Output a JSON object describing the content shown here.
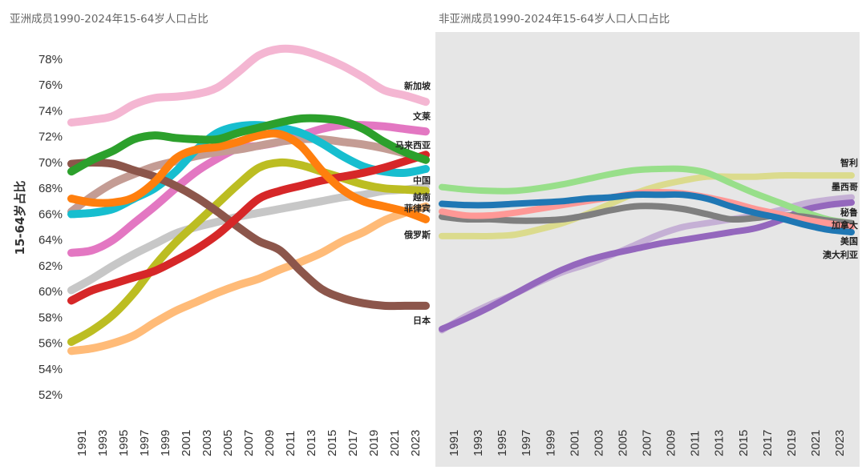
{
  "chart_data": [
    {
      "type": "line",
      "title": "亚洲成员1990-2024年15-64岁人口占比",
      "ylabel": "15-64岁占比",
      "xlabel": "",
      "ylim": [
        52,
        78
      ],
      "yticks": [
        "52%",
        "54%",
        "56%",
        "58%",
        "60%",
        "62%",
        "64%",
        "66%",
        "68%",
        "70%",
        "72%",
        "74%",
        "76%",
        "78%"
      ],
      "xticks": [
        "1991",
        "1993",
        "1995",
        "1997",
        "1999",
        "2001",
        "2003",
        "2005",
        "2007",
        "2009",
        "2011",
        "2013",
        "2015",
        "2017",
        "2019",
        "2021",
        "2023"
      ],
      "grid": false,
      "x": [
        1990,
        1992,
        1994,
        1996,
        1998,
        2000,
        2002,
        2004,
        2006,
        2008,
        2010,
        2012,
        2014,
        2016,
        2018,
        2020,
        2022,
        2024
      ],
      "series": [
        {
          "name": "新加坡",
          "color": "#f4b6d2",
          "values": [
            73.1,
            73.3,
            73.6,
            74.5,
            75.0,
            75.1,
            75.3,
            75.8,
            77.0,
            78.3,
            78.8,
            78.7,
            78.2,
            77.5,
            76.6,
            75.6,
            75.2,
            74.7
          ]
        },
        {
          "name": "文莱",
          "color": "#e377c2",
          "values": [
            63.0,
            63.2,
            64.0,
            65.3,
            66.6,
            68.0,
            69.3,
            70.3,
            71.1,
            71.3,
            71.6,
            72.1,
            72.6,
            72.9,
            72.9,
            72.8,
            72.6,
            72.4
          ]
        },
        {
          "name": "",
          "color": "#c49c94",
          "values": [
            66.2,
            67.4,
            68.4,
            69.1,
            69.7,
            70.1,
            70.5,
            70.8,
            71.0,
            71.3,
            71.6,
            71.8,
            71.8,
            71.6,
            71.4,
            71.1,
            70.7,
            70.2
          ]
        },
        {
          "name": "中国",
          "color": "#17becf",
          "values": [
            66.0,
            66.1,
            66.4,
            67.2,
            68.0,
            69.3,
            71.0,
            72.3,
            72.8,
            72.9,
            72.7,
            72.3,
            71.5,
            70.5,
            69.7,
            69.3,
            69.2,
            69.5
          ]
        },
        {
          "name": "",
          "color": "#c7c7c7",
          "values": [
            60.1,
            61.0,
            62.0,
            62.9,
            63.7,
            64.5,
            65.0,
            65.4,
            65.8,
            66.1,
            66.4,
            66.7,
            67.0,
            67.3,
            67.5,
            67.8,
            67.9,
            68.1
          ]
        },
        {
          "name": "越南",
          "color": "#bcbd22",
          "values": [
            56.1,
            57.0,
            58.2,
            59.9,
            62.0,
            63.8,
            65.3,
            66.8,
            68.3,
            69.6,
            70.0,
            69.8,
            69.3,
            68.8,
            68.3,
            68.0,
            67.9,
            67.8
          ]
        },
        {
          "name": "菲律宾",
          "color": "#ffbb78",
          "values": [
            55.4,
            55.6,
            56.0,
            56.6,
            57.6,
            58.5,
            59.2,
            59.9,
            60.5,
            61.0,
            61.7,
            62.3,
            63.0,
            63.9,
            64.6,
            65.5,
            66.1,
            66.6
          ]
        },
        {
          "name": "日本",
          "color": "#8c564b",
          "values": [
            69.9,
            70.0,
            69.9,
            69.4,
            68.9,
            68.2,
            67.3,
            66.2,
            65.0,
            63.9,
            63.2,
            61.6,
            60.2,
            59.5,
            59.1,
            58.9,
            58.9,
            58.9
          ]
        },
        {
          "name": "马来西亚",
          "color": "#d62728",
          "values": [
            59.3,
            60.1,
            60.6,
            61.1,
            61.6,
            62.4,
            63.3,
            64.4,
            65.8,
            67.2,
            67.8,
            68.2,
            68.6,
            68.9,
            69.2,
            69.6,
            70.1,
            70.6
          ]
        },
        {
          "name": "俄罗斯",
          "color": "#ff7f0e",
          "values": [
            67.2,
            66.9,
            66.9,
            67.3,
            68.5,
            70.3,
            71.0,
            71.2,
            71.6,
            72.1,
            72.2,
            71.3,
            69.4,
            67.9,
            67.0,
            66.6,
            66.2,
            65.6
          ]
        },
        {
          "name": "",
          "color": "#2ca02c",
          "values": [
            69.3,
            70.2,
            70.9,
            71.8,
            72.1,
            71.9,
            71.8,
            71.8,
            72.3,
            72.7,
            73.1,
            73.4,
            73.4,
            73.2,
            72.6,
            71.6,
            70.8,
            70.2
          ]
        }
      ]
    },
    {
      "type": "line",
      "title": "非亚洲成员1990-2024年15-64岁人口人口占比",
      "ylim": [
        52,
        78
      ],
      "xticks": [
        "1991",
        "1993",
        "1995",
        "1997",
        "1999",
        "2001",
        "2003",
        "2005",
        "2007",
        "2009",
        "2011",
        "2013",
        "2015",
        "2017",
        "2019",
        "2021",
        "2023"
      ],
      "background": "#e6e6e6",
      "grid": false,
      "x": [
        1990,
        1992,
        1994,
        1996,
        1998,
        2000,
        2002,
        2004,
        2006,
        2008,
        2010,
        2012,
        2014,
        2016,
        2018,
        2020,
        2022,
        2024
      ],
      "series": [
        {
          "name": "智利",
          "color": "#dbdb8d",
          "values": [
            64.3,
            64.3,
            64.3,
            64.4,
            64.8,
            65.3,
            66.0,
            66.8,
            67.6,
            68.2,
            68.6,
            68.9,
            68.9,
            68.9,
            69.0,
            69.0,
            69.0,
            69.0
          ]
        },
        {
          "name": "墨西哥",
          "color": "#c5b0d5",
          "values": [
            57.0,
            58.1,
            59.0,
            59.8,
            60.7,
            61.5,
            62.1,
            62.8,
            63.6,
            64.4,
            65.0,
            65.3,
            65.6,
            65.9,
            66.3,
            66.8,
            67.1,
            67.3
          ]
        },
        {
          "name": "秘鲁",
          "color": "#9467bd",
          "values": [
            57.1,
            57.9,
            58.8,
            59.8,
            60.8,
            61.7,
            62.4,
            62.9,
            63.3,
            63.7,
            64.0,
            64.3,
            64.6,
            64.9,
            65.5,
            66.3,
            66.7,
            66.9
          ]
        },
        {
          "name": "加拿大",
          "color": "#98df8a",
          "values": [
            68.1,
            67.9,
            67.8,
            67.8,
            68.0,
            68.3,
            68.7,
            69.1,
            69.4,
            69.5,
            69.5,
            69.2,
            68.4,
            67.6,
            66.9,
            66.2,
            65.6,
            65.3
          ]
        },
        {
          "name": "",
          "color": "#7f7f7f",
          "values": [
            65.8,
            65.6,
            65.6,
            65.5,
            65.5,
            65.6,
            65.9,
            66.3,
            66.6,
            66.6,
            66.4,
            66.0,
            65.6,
            65.7,
            65.9,
            65.8,
            65.5,
            65.3
          ]
        },
        {
          "name": "澳大利亚",
          "color": "#ff9896",
          "values": [
            66.2,
            65.9,
            65.9,
            66.1,
            66.4,
            66.7,
            67.0,
            67.3,
            67.6,
            67.7,
            67.6,
            67.3,
            66.9,
            66.4,
            66.0,
            65.6,
            65.3,
            65.0
          ]
        },
        {
          "name": "美国",
          "color": "#1f77b4",
          "values": [
            66.8,
            66.7,
            66.7,
            66.8,
            66.9,
            67.0,
            67.2,
            67.3,
            67.5,
            67.5,
            67.5,
            67.2,
            66.6,
            66.1,
            65.7,
            65.2,
            64.8,
            64.6
          ]
        }
      ]
    }
  ]
}
